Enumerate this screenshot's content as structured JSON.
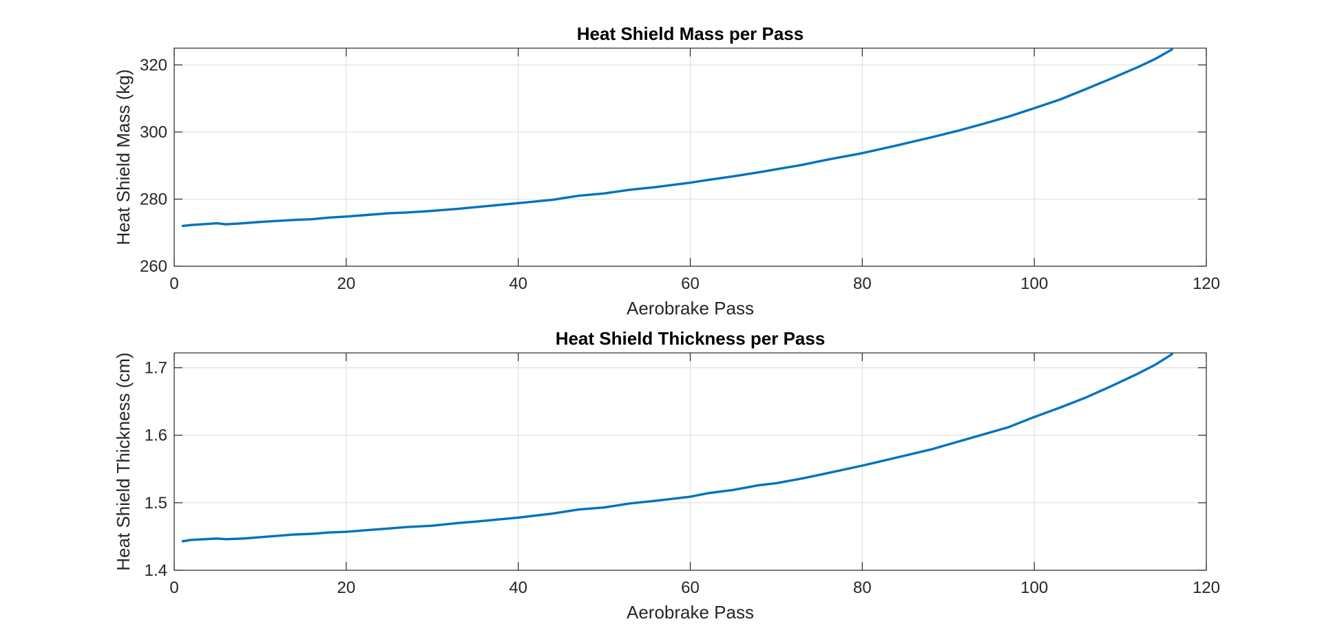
{
  "chart_data": [
    {
      "type": "line",
      "title": "Heat Shield Mass per Pass",
      "xlabel": "Aerobrake Pass",
      "ylabel": "Heat Shield Mass (kg)",
      "xlim": [
        0,
        120
      ],
      "ylim": [
        260,
        325
      ],
      "xticks": [
        0,
        20,
        40,
        60,
        80,
        100,
        120
      ],
      "yticks": [
        260,
        280,
        300,
        320
      ],
      "xtick_labels": [
        "0",
        "20",
        "40",
        "60",
        "80",
        "100",
        "120"
      ],
      "ytick_labels": [
        "260",
        "280",
        "300",
        "320"
      ],
      "grid": true,
      "color": "#0072BD",
      "series": [
        {
          "x": [
            1,
            2,
            5,
            6,
            8,
            10,
            14,
            16,
            18,
            20,
            22,
            25,
            27,
            30,
            33,
            35,
            40,
            44,
            47,
            50,
            53,
            56,
            60,
            62,
            65,
            68,
            70,
            73,
            76,
            80,
            84,
            88,
            91,
            94,
            97,
            100,
            103,
            106,
            109,
            112,
            114,
            116
          ],
          "y": [
            272.0,
            272.3,
            272.8,
            272.5,
            272.8,
            273.2,
            273.8,
            274.0,
            274.5,
            274.8,
            275.2,
            275.8,
            276.0,
            276.5,
            277.1,
            277.6,
            278.8,
            279.8,
            281.0,
            281.7,
            282.8,
            283.6,
            284.9,
            285.7,
            286.8,
            288.0,
            288.9,
            290.2,
            291.8,
            293.7,
            296.0,
            298.4,
            300.3,
            302.4,
            304.6,
            307.1,
            309.7,
            312.8,
            316.0,
            319.3,
            321.7,
            324.6
          ]
        }
      ]
    },
    {
      "type": "line",
      "title": "Heat Shield Thickness per Pass",
      "xlabel": "Aerobrake Pass",
      "ylabel": "Heat Shield Thickness (cm)",
      "xlim": [
        0,
        120
      ],
      "ylim": [
        1.4,
        1.722
      ],
      "xticks": [
        0,
        20,
        40,
        60,
        80,
        100,
        120
      ],
      "yticks": [
        1.4,
        1.5,
        1.6,
        1.7
      ],
      "xtick_labels": [
        "0",
        "20",
        "40",
        "60",
        "80",
        "100",
        "120"
      ],
      "ytick_labels": [
        "1.4",
        "1.5",
        "1.6",
        "1.7"
      ],
      "grid": true,
      "color": "#0072BD",
      "series": [
        {
          "x": [
            1,
            2,
            5,
            6,
            8,
            10,
            14,
            16,
            18,
            20,
            22,
            25,
            27,
            30,
            33,
            35,
            40,
            44,
            47,
            50,
            53,
            56,
            60,
            62,
            65,
            68,
            70,
            73,
            76,
            80,
            84,
            88,
            91,
            94,
            97,
            100,
            103,
            106,
            109,
            112,
            114,
            116
          ],
          "y": [
            1.443,
            1.445,
            1.447,
            1.446,
            1.447,
            1.449,
            1.453,
            1.454,
            1.456,
            1.457,
            1.459,
            1.462,
            1.464,
            1.466,
            1.47,
            1.472,
            1.478,
            1.484,
            1.49,
            1.493,
            1.499,
            1.503,
            1.509,
            1.514,
            1.519,
            1.526,
            1.529,
            1.536,
            1.544,
            1.555,
            1.567,
            1.579,
            1.59,
            1.601,
            1.612,
            1.627,
            1.641,
            1.656,
            1.673,
            1.691,
            1.704,
            1.72
          ]
        }
      ]
    }
  ]
}
